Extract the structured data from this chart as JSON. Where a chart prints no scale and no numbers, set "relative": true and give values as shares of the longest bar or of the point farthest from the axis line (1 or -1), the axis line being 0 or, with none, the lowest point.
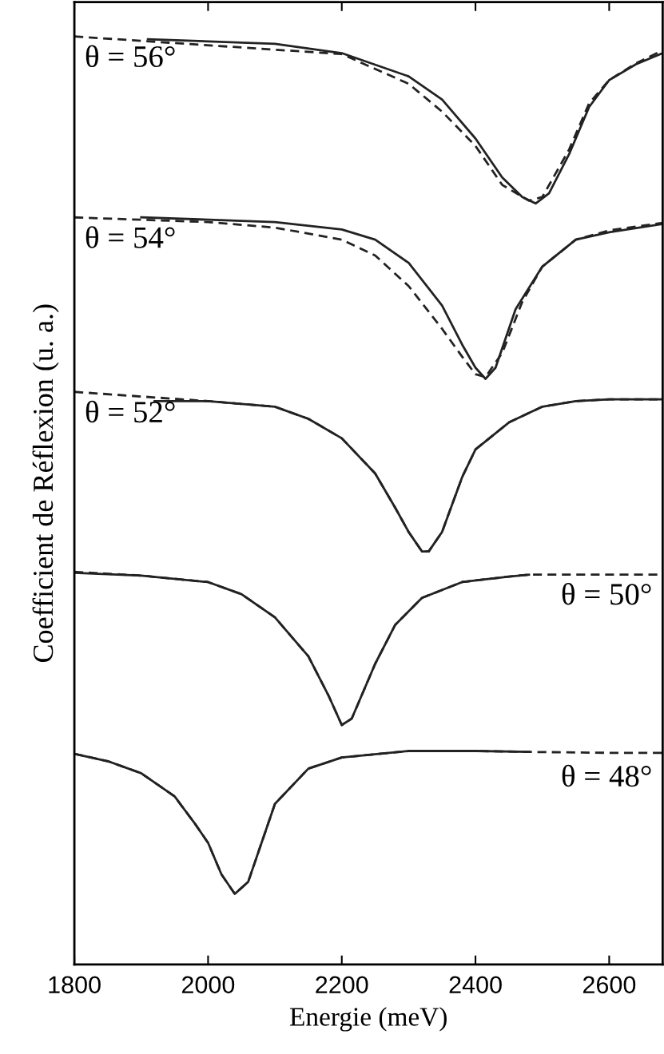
{
  "chart_data": {
    "type": "line",
    "relative": true,
    "xlabel": "Energie (meV)",
    "ylabel": "Coefficient de Réflexion (u. a.)",
    "xlim": [
      1800,
      2680
    ],
    "xticks": [
      1800,
      2000,
      2200,
      2400,
      2600
    ],
    "grid": false,
    "legend": false,
    "marker": "none",
    "series": [
      {
        "color": "#222222",
        "line_style": "solid",
        "x": [
          1910,
          2100,
          2200,
          2300,
          2350,
          2400,
          2440,
          2470,
          2490,
          2510,
          2540,
          2570,
          2600,
          2640,
          2680
        ],
        "values": [
          0.997,
          0.992,
          0.982,
          0.957,
          0.932,
          0.89,
          0.848,
          0.827,
          0.82,
          0.831,
          0.873,
          0.924,
          0.953,
          0.97,
          0.982
        ]
      },
      {
        "color": "#222222",
        "line_style": "dashed",
        "x": [
          1800,
          2200,
          2300,
          2350,
          2400,
          2440,
          2480,
          2500,
          2540,
          2570,
          2600,
          2640,
          2680
        ],
        "values": [
          1.0,
          0.981,
          0.949,
          0.919,
          0.882,
          0.84,
          0.823,
          0.827,
          0.878,
          0.928,
          0.953,
          0.971,
          0.985
        ]
      },
      {
        "color": "#222222",
        "line_style": "solid",
        "x": [
          1900,
          2100,
          2200,
          2250,
          2300,
          2350,
          2380,
          2400,
          2415,
          2430,
          2460,
          2500,
          2550,
          2600,
          2680
        ],
        "values": [
          0.805,
          0.8,
          0.792,
          0.781,
          0.756,
          0.71,
          0.668,
          0.643,
          0.631,
          0.643,
          0.706,
          0.752,
          0.781,
          0.789,
          0.798
        ]
      },
      {
        "color": "#222222",
        "line_style": "dashed",
        "x": [
          1800,
          2000,
          2100,
          2200,
          2250,
          2300,
          2350,
          2380,
          2400,
          2415,
          2440,
          2470,
          2500,
          2550,
          2600,
          2680
        ],
        "values": [
          0.805,
          0.8,
          0.794,
          0.781,
          0.764,
          0.731,
          0.685,
          0.655,
          0.636,
          0.633,
          0.659,
          0.714,
          0.752,
          0.781,
          0.791,
          0.799
        ]
      },
      {
        "color": "#222222",
        "line_style": "solid",
        "x": [
          1920,
          2000,
          2100,
          2150,
          2200,
          2250,
          2280,
          2300,
          2320,
          2330,
          2350,
          2380,
          2400,
          2450,
          2500,
          2550,
          2600,
          2680
        ],
        "values": [
          0.607,
          0.607,
          0.601,
          0.588,
          0.567,
          0.529,
          0.492,
          0.466,
          0.445,
          0.445,
          0.466,
          0.525,
          0.555,
          0.584,
          0.601,
          0.607,
          0.609,
          0.609
        ]
      },
      {
        "color": "#222222",
        "line_style": "dashed",
        "x": [
          1800,
          2000,
          2100,
          2150,
          2200,
          2250,
          2280,
          2300,
          2320,
          2330,
          2350,
          2380,
          2400,
          2450,
          2500,
          2550,
          2600,
          2680
        ],
        "values": [
          0.617,
          0.607,
          0.601,
          0.588,
          0.567,
          0.529,
          0.492,
          0.466,
          0.445,
          0.445,
          0.466,
          0.525,
          0.555,
          0.584,
          0.601,
          0.607,
          0.609,
          0.609
        ]
      },
      {
        "color": "#222222",
        "line_style": "solid",
        "x": [
          1800,
          1900,
          2000,
          2050,
          2100,
          2150,
          2180,
          2200,
          2215,
          2250,
          2280,
          2320,
          2380,
          2450,
          2480
        ],
        "values": [
          0.422,
          0.419,
          0.412,
          0.399,
          0.374,
          0.332,
          0.29,
          0.258,
          0.265,
          0.324,
          0.366,
          0.395,
          0.412,
          0.418,
          0.42
        ]
      },
      {
        "color": "#222222",
        "line_style": "dashed",
        "x": [
          1800,
          1900,
          2000,
          2050,
          2100,
          2150,
          2180,
          2200,
          2215,
          2250,
          2280,
          2320,
          2380,
          2450,
          2480,
          2550,
          2680
        ],
        "values": [
          0.423,
          0.419,
          0.412,
          0.399,
          0.374,
          0.332,
          0.29,
          0.258,
          0.265,
          0.324,
          0.366,
          0.395,
          0.412,
          0.418,
          0.42,
          0.42,
          0.42
        ]
      },
      {
        "color": "#222222",
        "line_style": "solid",
        "x": [
          1800,
          1850,
          1900,
          1950,
          1980,
          2000,
          2020,
          2040,
          2060,
          2080,
          2100,
          2150,
          2200,
          2300,
          2400,
          2480
        ],
        "values": [
          0.227,
          0.219,
          0.206,
          0.181,
          0.152,
          0.131,
          0.097,
          0.076,
          0.089,
          0.131,
          0.173,
          0.211,
          0.223,
          0.23,
          0.23,
          0.229
        ]
      },
      {
        "color": "#222222",
        "line_style": "dashed",
        "x": [
          1800,
          1850,
          1900,
          1950,
          1980,
          2000,
          2020,
          2040,
          2060,
          2080,
          2100,
          2150,
          2200,
          2300,
          2400,
          2480,
          2600,
          2680
        ],
        "values": [
          0.227,
          0.219,
          0.206,
          0.181,
          0.152,
          0.131,
          0.097,
          0.076,
          0.089,
          0.131,
          0.173,
          0.211,
          0.223,
          0.23,
          0.23,
          0.229,
          0.228,
          0.228
        ]
      }
    ],
    "annotations": [
      "θ = 56°",
      "θ = 54°",
      "θ = 52°",
      "θ = 50°",
      "θ = 48°"
    ]
  }
}
